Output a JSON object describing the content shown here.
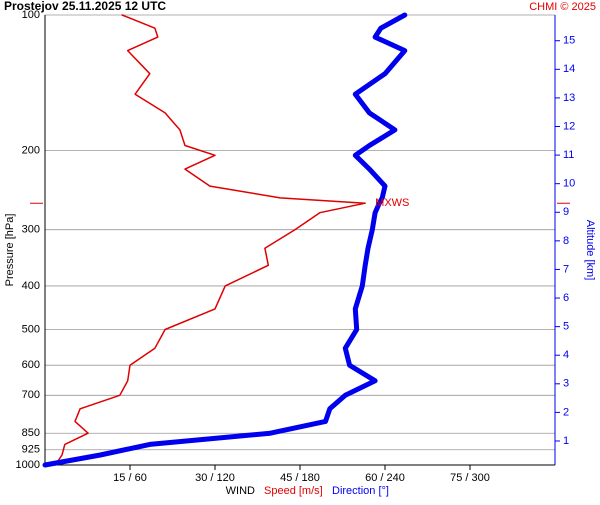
{
  "chart_data": {
    "type": "line",
    "title": "Prostejov   25.11.2025 12 UTC",
    "credit": "CHMI © 2025",
    "ylabel": "Pressure [hPa]",
    "y2label": "Altitude [km]",
    "xlabel": "WIND",
    "xlabel_speed": "Speed [m/s]",
    "xlabel_direction": "Direction [°]",
    "annotation": {
      "text": "MXWS",
      "y": 262,
      "x": 56.5
    },
    "y_scale": "log",
    "ylim": [
      100,
      1000
    ],
    "yticks": [
      100,
      200,
      300,
      400,
      500,
      600,
      700,
      850,
      925,
      1000
    ],
    "y2lim": [
      0.16,
      15.9
    ],
    "y2ticks": [
      1,
      2,
      3,
      4,
      5,
      6,
      7,
      8,
      9,
      10,
      11,
      12,
      13,
      14,
      15
    ],
    "xlim": [
      0,
      90
    ],
    "x2lim": [
      0,
      360
    ],
    "xticks": [
      {
        "value": 15,
        "label": "15 / 60"
      },
      {
        "value": 30,
        "label": "30 / 120"
      },
      {
        "value": 45,
        "label": "45 / 180"
      },
      {
        "value": 60,
        "label": "60 / 240"
      },
      {
        "value": 75,
        "label": "75 / 300"
      }
    ],
    "grid": true,
    "y": [
      100,
      107,
      112,
      120,
      135,
      150,
      165,
      180,
      195,
      205,
      220,
      240,
      255,
      262,
      275,
      300,
      330,
      360,
      400,
      450,
      500,
      550,
      600,
      650,
      700,
      750,
      800,
      850,
      900,
      950,
      1000
    ],
    "series": [
      {
        "name": "Speed [m/s]",
        "color": "#e00000",
        "axis": "x",
        "values": [
          13.6,
          19.4,
          19.9,
          14.6,
          18.5,
          15.9,
          21.2,
          23.8,
          24.7,
          30.0,
          24.7,
          29.1,
          41.5,
          56.5,
          48.5,
          44.1,
          38.8,
          39.4,
          31.8,
          30.0,
          21.2,
          19.4,
          15.0,
          14.6,
          13.2,
          6.2,
          5.3,
          7.6,
          3.5,
          3.0,
          1.8
        ]
      },
      {
        "name": "Direction [°]",
        "color": "#0000ee",
        "axis": "x2",
        "values": [
          254,
          237,
          233,
          254,
          240,
          219,
          229,
          247,
          229,
          219,
          229,
          240,
          238,
          236,
          233,
          231,
          228,
          226,
          224,
          219,
          220,
          212,
          215,
          233,
          212,
          201,
          198,
          159,
          74,
          39,
          0
        ]
      }
    ]
  }
}
